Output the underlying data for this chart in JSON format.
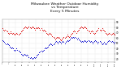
{
  "title": "Milwaukee Weather Outdoor Humidity\nvs Temperature\nEvery 5 Minutes",
  "title_fontsize": 3.2,
  "background_color": "#ffffff",
  "grid_color": "#bbbbbb",
  "red_color": "#dd0000",
  "blue_color": "#0000cc",
  "red_x": [
    0,
    1,
    2,
    3,
    4,
    5,
    6,
    7,
    8,
    9,
    10,
    11,
    12,
    13,
    14,
    15,
    16,
    17,
    18,
    19,
    20,
    21,
    22,
    23,
    24,
    25,
    26,
    27,
    28,
    29,
    30,
    31,
    32,
    33,
    34,
    35,
    36,
    37,
    38,
    39,
    40,
    41,
    42,
    43,
    44,
    45,
    46,
    47,
    48,
    49,
    50,
    51,
    52,
    53,
    54,
    55,
    56,
    57,
    58,
    59,
    60,
    61,
    62,
    63,
    64,
    65,
    66,
    67,
    68,
    69,
    70,
    71,
    72,
    73,
    74,
    75,
    76,
    77,
    78,
    79,
    80,
    81,
    82,
    83,
    84,
    85,
    86,
    87,
    88,
    89,
    90,
    91,
    92,
    93,
    94,
    95,
    96,
    97,
    98,
    99,
    100,
    101,
    102,
    103,
    104,
    105,
    106,
    107,
    108,
    109,
    110,
    111,
    112,
    113,
    114,
    115,
    116,
    117,
    118,
    119,
    120,
    121,
    122,
    123,
    124,
    125,
    126,
    127,
    128
  ],
  "red_y": [
    78,
    76,
    74,
    76,
    74,
    72,
    70,
    68,
    70,
    72,
    70,
    68,
    70,
    68,
    66,
    68,
    70,
    68,
    66,
    68,
    70,
    72,
    74,
    76,
    78,
    80,
    82,
    80,
    78,
    80,
    82,
    80,
    78,
    80,
    82,
    80,
    78,
    76,
    78,
    80,
    78,
    80,
    78,
    76,
    78,
    76,
    74,
    76,
    74,
    72,
    70,
    68,
    66,
    68,
    70,
    68,
    66,
    64,
    62,
    60,
    58,
    60,
    62,
    60,
    62,
    60,
    58,
    56,
    58,
    60,
    62,
    60,
    62,
    64,
    66,
    64,
    62,
    64,
    66,
    68,
    70,
    72,
    74,
    72,
    70,
    72,
    74,
    76,
    78,
    80,
    82,
    80,
    78,
    80,
    82,
    80,
    78,
    76,
    74,
    72,
    70,
    72,
    74,
    72,
    70,
    68,
    70,
    72,
    74,
    76,
    78,
    76,
    74,
    76,
    78,
    76,
    74,
    72,
    70,
    68,
    66,
    68,
    70,
    68,
    66,
    68,
    70,
    68,
    66
  ],
  "blue_x": [
    0,
    1,
    2,
    3,
    4,
    5,
    6,
    7,
    8,
    9,
    10,
    11,
    12,
    13,
    14,
    15,
    16,
    17,
    18,
    19,
    20,
    21,
    22,
    23,
    24,
    25,
    26,
    27,
    28,
    29,
    30,
    31,
    32,
    33,
    34,
    35,
    36,
    37,
    38,
    39,
    40,
    41,
    42,
    43,
    44,
    45,
    46,
    47,
    48,
    49,
    50,
    51,
    52,
    53,
    54,
    55,
    56,
    57,
    58,
    59,
    60,
    61,
    62,
    63,
    64,
    65,
    66,
    67,
    68,
    69,
    70,
    71,
    72,
    73,
    74,
    75,
    76,
    77,
    78,
    79,
    80,
    81,
    82,
    83,
    84,
    85,
    86,
    87,
    88,
    89,
    90,
    91,
    92,
    93,
    94,
    95,
    96,
    97,
    98,
    99,
    100,
    101,
    102,
    103,
    104,
    105,
    106,
    107,
    108,
    109,
    110,
    111,
    112,
    113,
    114,
    115,
    116,
    117,
    118,
    119,
    120,
    121,
    122,
    123,
    124,
    125,
    126,
    127,
    128
  ],
  "blue_y": [
    56,
    54,
    52,
    50,
    48,
    50,
    48,
    46,
    44,
    42,
    40,
    42,
    40,
    38,
    36,
    38,
    40,
    38,
    36,
    34,
    32,
    30,
    28,
    26,
    28,
    30,
    28,
    26,
    28,
    26,
    24,
    22,
    24,
    22,
    20,
    22,
    24,
    22,
    24,
    26,
    28,
    30,
    32,
    34,
    36,
    34,
    36,
    38,
    40,
    42,
    40,
    42,
    44,
    46,
    48,
    50,
    48,
    46,
    48,
    50,
    52,
    54,
    52,
    50,
    52,
    54,
    52,
    50,
    52,
    54,
    52,
    50,
    52,
    54,
    56,
    54,
    56,
    58,
    60,
    62,
    60,
    62,
    60,
    62,
    60,
    58,
    60,
    58,
    56,
    54,
    52,
    54,
    52,
    54,
    56,
    54,
    52,
    54,
    56,
    54,
    52,
    54,
    52,
    50,
    52,
    54,
    56,
    54,
    52,
    50,
    52,
    54,
    52,
    50,
    48,
    50,
    52,
    50,
    48,
    50,
    52,
    54,
    56,
    54,
    52,
    54,
    52,
    50,
    52
  ],
  "ylim": [
    15,
    95
  ],
  "xlim": [
    0,
    128
  ],
  "ytick_labels": [
    "90",
    "80",
    "70",
    "60",
    "50",
    "40",
    "30",
    "20"
  ],
  "ytick_values": [
    90,
    80,
    70,
    60,
    50,
    40,
    30,
    20
  ],
  "marker_size": 0.5,
  "x_num_ticks": 18
}
